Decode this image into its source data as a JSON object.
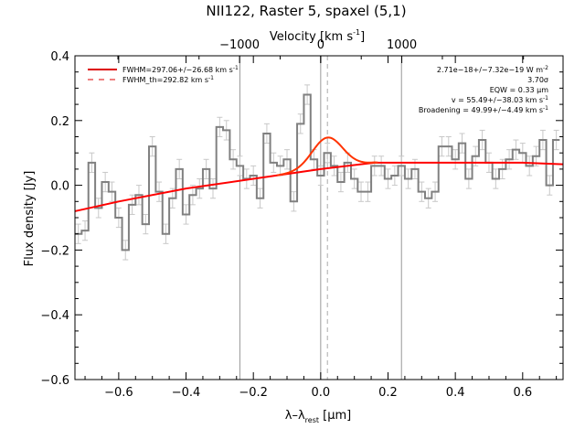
{
  "chart_data": {
    "type": "line",
    "title": "NII122, Raster 5, spaxel (5,1)",
    "xlabel_main": "λ–λ",
    "xlabel_sub": "rest",
    "xlabel_unit": " [μm]",
    "ylabel": "Flux density [Jy]",
    "top_axis_label": "Velocity [km s",
    "top_axis_label_sup": "-1",
    "top_axis_label_end": "]",
    "xlim": [
      -0.73,
      0.72
    ],
    "ylim": [
      -0.6,
      0.4
    ],
    "xticks": [
      -0.6,
      -0.4,
      -0.2,
      0.0,
      0.2,
      0.4,
      0.6
    ],
    "xtick_labels": [
      "−0.6",
      "−0.4",
      "−0.2",
      "0.0",
      "0.2",
      "0.4",
      "0.6"
    ],
    "yticks": [
      -0.6,
      -0.4,
      -0.2,
      0.0,
      0.2,
      0.4
    ],
    "ytick_labels": [
      "−0.6",
      "−0.4",
      "−0.2",
      "0.0",
      "0.2",
      "0.4"
    ],
    "top_ticks_velocity": [
      -1000,
      0,
      1000
    ],
    "top_tick_labels": [
      "−1000",
      "0",
      "1000"
    ],
    "velocity_per_micron": 4150,
    "vertical_lines": [
      -0.24,
      0.0,
      0.24
    ],
    "dashed_line": 0.02,
    "legend": [
      {
        "label": "FWHM=297.06+/−26.68 km s",
        "sup": "-1",
        "style": "solid"
      },
      {
        "label": "FWHM_th=292.82 km s",
        "sup": "-1",
        "style": "dashed"
      }
    ],
    "annotations": [
      {
        "text": "2.71e−18+/−7.32e−19 W m",
        "sup": "-2"
      },
      {
        "text": "3.70σ",
        "sup": ""
      },
      {
        "text": "EQW = 0.33 μm",
        "sup": ""
      },
      {
        "text": "v = 55.49+/−38.03 km s",
        "sup": "-1"
      },
      {
        "text": "Broadening = 49.99+/−4.49 km s",
        "sup": "-1"
      }
    ],
    "spectrum": {
      "name": "data",
      "color": "#808080",
      "x": [
        -0.72,
        -0.7,
        -0.68,
        -0.66,
        -0.64,
        -0.62,
        -0.6,
        -0.58,
        -0.56,
        -0.54,
        -0.52,
        -0.5,
        -0.48,
        -0.46,
        -0.44,
        -0.42,
        -0.4,
        -0.38,
        -0.36,
        -0.34,
        -0.32,
        -0.3,
        -0.28,
        -0.26,
        -0.24,
        -0.22,
        -0.2,
        -0.18,
        -0.16,
        -0.14,
        -0.12,
        -0.1,
        -0.08,
        -0.06,
        -0.04,
        -0.02,
        0.0,
        0.02,
        0.04,
        0.06,
        0.08,
        0.1,
        0.12,
        0.14,
        0.16,
        0.18,
        0.2,
        0.22,
        0.24,
        0.26,
        0.28,
        0.3,
        0.32,
        0.34,
        0.36,
        0.38,
        0.4,
        0.42,
        0.44,
        0.46,
        0.48,
        0.5,
        0.52,
        0.54,
        0.56,
        0.58,
        0.6,
        0.62,
        0.64,
        0.66,
        0.68,
        0.7
      ],
      "y": [
        -0.15,
        -0.14,
        0.07,
        -0.07,
        0.01,
        -0.02,
        -0.1,
        -0.2,
        -0.06,
        -0.03,
        -0.12,
        0.12,
        -0.02,
        -0.15,
        -0.04,
        0.05,
        -0.09,
        -0.03,
        -0.01,
        0.05,
        -0.01,
        0.18,
        0.17,
        0.08,
        0.06,
        0.02,
        0.03,
        -0.04,
        0.16,
        0.07,
        0.06,
        0.08,
        -0.05,
        0.19,
        0.28,
        0.08,
        0.03,
        0.1,
        0.06,
        0.01,
        0.07,
        0.02,
        -0.02,
        -0.02,
        0.06,
        0.06,
        0.02,
        0.03,
        0.06,
        0.02,
        0.05,
        -0.02,
        -0.04,
        -0.02,
        0.12,
        0.12,
        0.08,
        0.13,
        0.02,
        0.09,
        0.14,
        0.07,
        0.02,
        0.05,
        0.08,
        0.11,
        0.1,
        0.06,
        0.09,
        0.14,
        0.0,
        0.14
      ],
      "err": 0.03
    },
    "fit_baseline": {
      "name": "baseline",
      "color": "#ff0000",
      "x": [
        -0.73,
        -0.6,
        -0.4,
        -0.2,
        0.0,
        0.16,
        0.4,
        0.6,
        0.72
      ],
      "y": [
        -0.08,
        -0.05,
        -0.01,
        0.02,
        0.05,
        0.07,
        0.07,
        0.07,
        0.065
      ]
    },
    "fit_gaussian": {
      "name": "gaussian",
      "color": "#ff3300",
      "center": 0.02,
      "amplitude": 0.095,
      "sigma": 0.045,
      "x_range": [
        -0.13,
        0.17
      ]
    }
  }
}
